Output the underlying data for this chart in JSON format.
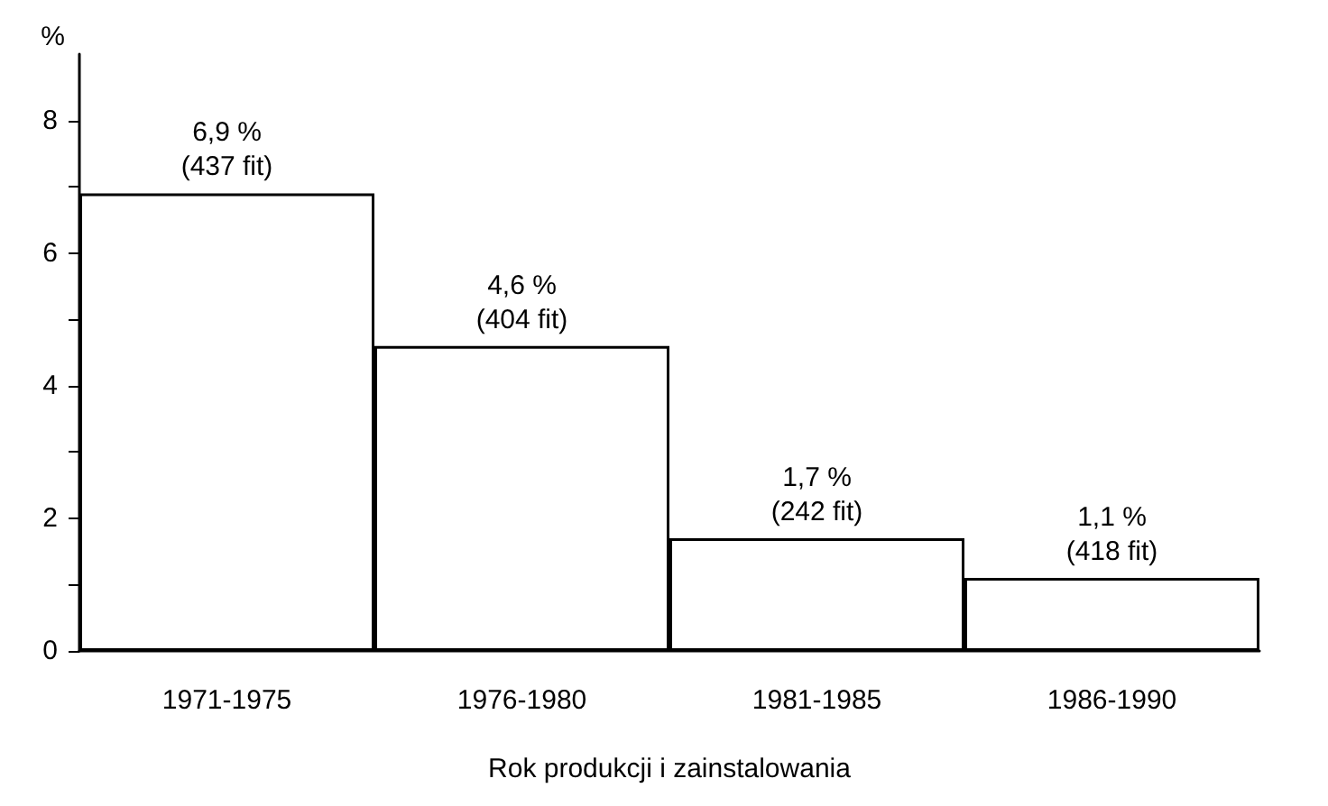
{
  "chart_data": {
    "type": "bar",
    "xlabel": "Rok produkcji i zainstalowania",
    "ylabel": "%",
    "categories": [
      "1971-1975",
      "1976-1980",
      "1981-1985",
      "1986-1990"
    ],
    "values": [
      6.9,
      4.6,
      1.7,
      1.1
    ],
    "color": "#ffffff",
    "value_labels": [
      "6,9 %\n(437 fit)",
      "4,6 %\n(404 fit)",
      "1,7 %\n(242 fit)",
      "1,1 %\n(418 fit)"
    ],
    "ylim": [
      0,
      9
    ],
    "yticks": [
      0,
      {
        "value": 1,
        "label": null
      },
      2,
      {
        "value": 3,
        "label": null
      },
      4,
      {
        "value": 5,
        "label": null
      },
      6,
      {
        "value": 7,
        "label": null
      },
      8
    ],
    "grid": false
  }
}
